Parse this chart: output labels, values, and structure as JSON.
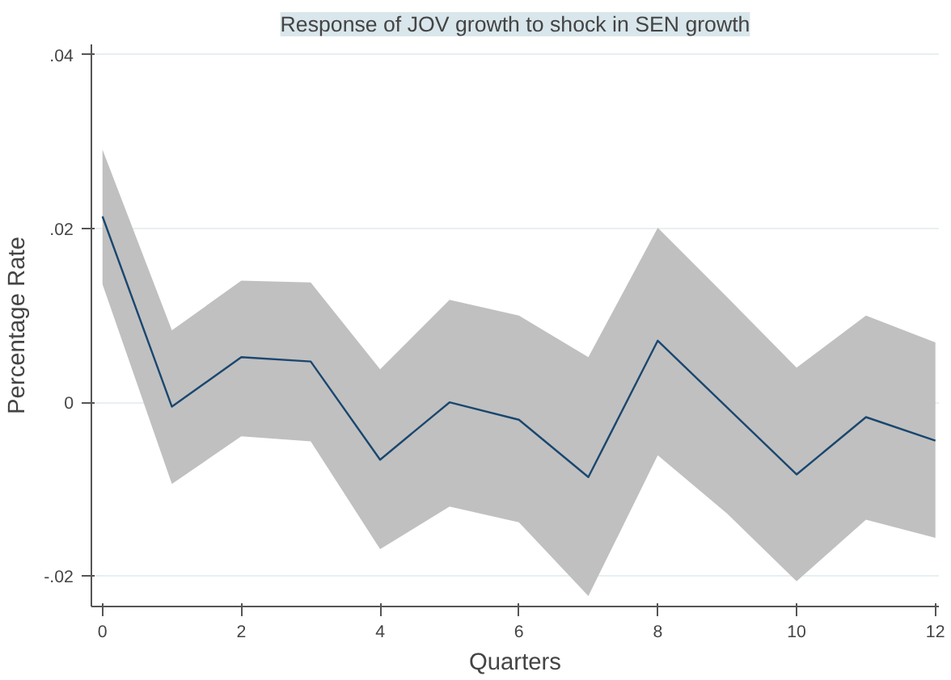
{
  "chart_data": {
    "type": "line",
    "title": "Response of JOV growth to shock in SEN growth",
    "xlabel": "Quarters",
    "ylabel": "Percentage Rate",
    "x": [
      0,
      1,
      2,
      3,
      4,
      5,
      6,
      7,
      8,
      9,
      10,
      11,
      12
    ],
    "series": [
      {
        "color": "#1a476f",
        "values": [
          0.0214,
          -0.0005,
          0.0052,
          0.0047,
          -0.0066,
          0.0,
          -0.002,
          -0.0086,
          0.0071,
          -0.0006,
          -0.0083,
          -0.0017,
          -0.0044
        ],
        "lower": [
          0.0136,
          -0.0094,
          -0.0039,
          -0.0045,
          -0.0169,
          -0.012,
          -0.0138,
          -0.0223,
          -0.0061,
          -0.0128,
          -0.0206,
          -0.0135,
          -0.0156
        ],
        "upper": [
          0.0291,
          0.0083,
          0.014,
          0.0138,
          0.0038,
          0.0118,
          0.01,
          0.0052,
          0.0201,
          0.0121,
          0.004,
          0.01,
          0.0069
        ]
      }
    ],
    "xlim": [
      -0.16,
      12.05
    ],
    "ylim": [
      -0.0235,
      0.0412
    ],
    "xticks": [
      0,
      2,
      4,
      6,
      8,
      10,
      12
    ],
    "yticks": [
      {
        "value": -0.02,
        "label": "-.02"
      },
      {
        "value": 0,
        "label": "0"
      },
      {
        "value": 0.02,
        "label": ".02"
      },
      {
        "value": 0.04,
        "label": ".04"
      }
    ],
    "grid": "y",
    "marker": "none",
    "line_style": "solid"
  }
}
